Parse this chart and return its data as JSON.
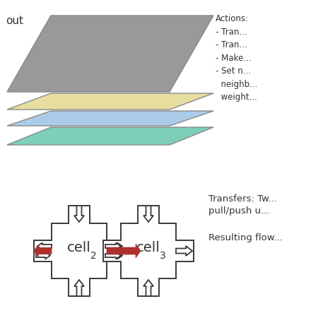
{
  "bg_color": "#ffffff",
  "layer_colors": [
    "#999999",
    "#e8dea0",
    "#aacce8",
    "#7ecfba"
  ],
  "layer_edge_color": "#888888",
  "text_color": "#333333",
  "red_color": "#b03030",
  "gray_color": "#555555",
  "out_label": "out",
  "actions_lines": [
    "Actions:",
    "- Tran...",
    "- Tran...",
    "- Make...",
    "- Set n...",
    "  neighb...",
    "  weight..."
  ],
  "transfers_line1": "Transfers: Tw...",
  "transfers_line2": "pull/push u...",
  "resulting_text": "Resulting flow..."
}
